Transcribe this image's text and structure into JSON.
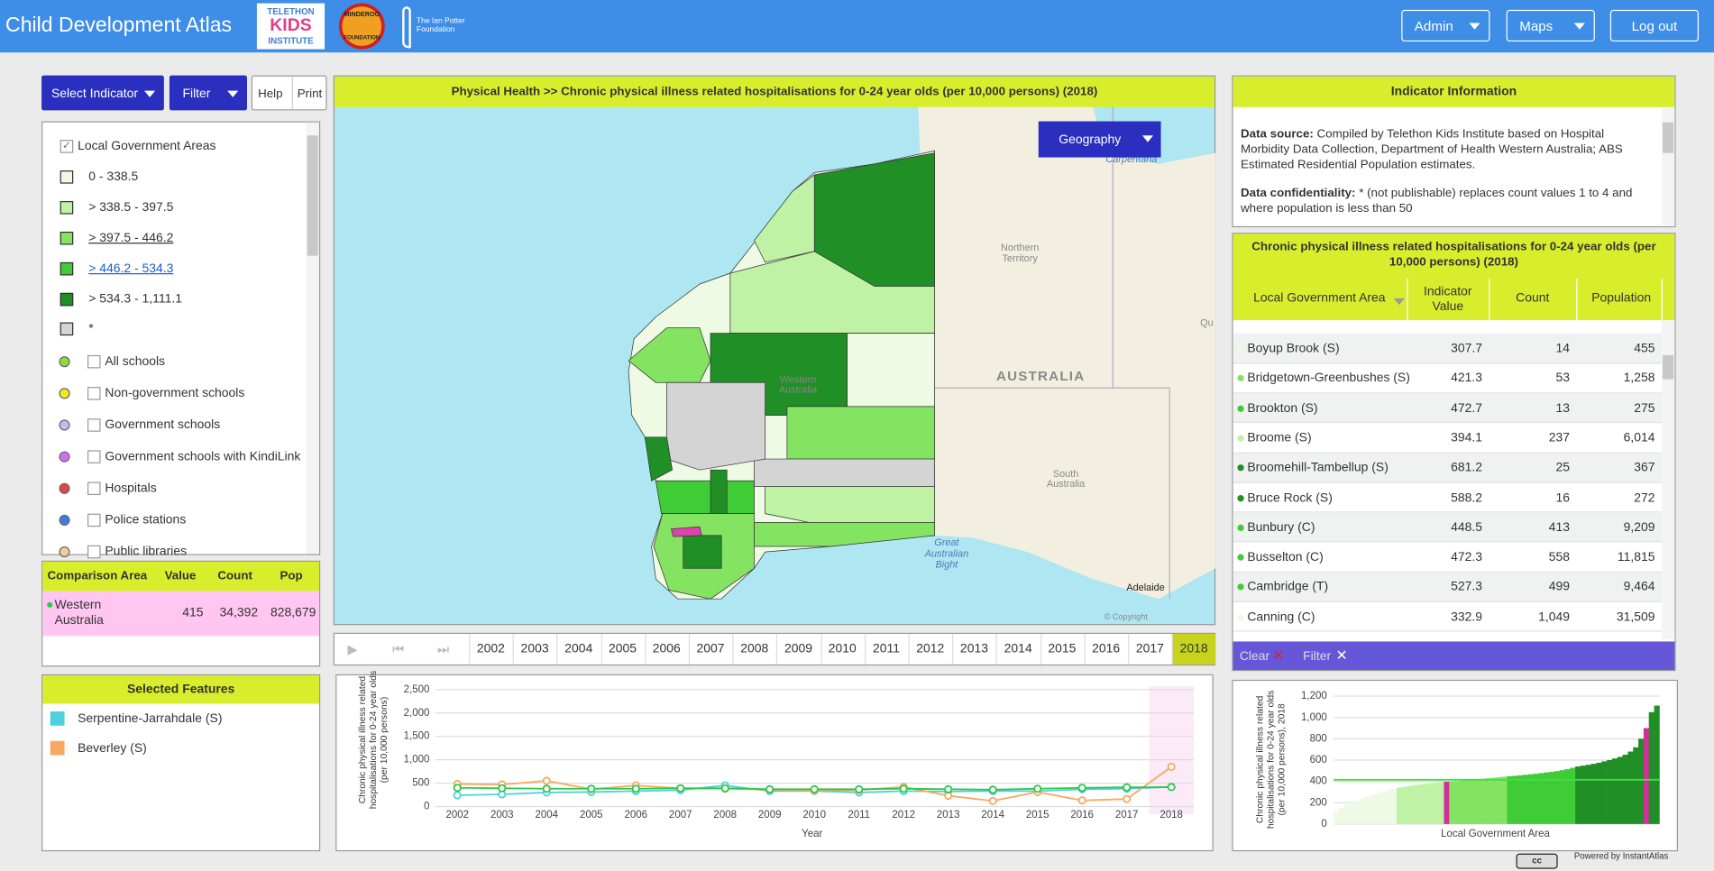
{
  "header": {
    "title": "Child Development Atlas",
    "logos": [
      "TELETHON",
      "KIDS",
      "INSTITUTE",
      "MINDEROO",
      "FOUNDATION",
      "The Ian Potter",
      "Foundation"
    ],
    "nav": [
      "Admin",
      "Maps",
      "Log out"
    ]
  },
  "toolbar": {
    "select_indicator": "Select Indicator",
    "filter": "Filter",
    "help": "Help",
    "print": "Print"
  },
  "legend": {
    "layer": "Local Government Areas",
    "classes": [
      {
        "label": "0 - 338.5",
        "color": "#eefae4",
        "upper": 338.5
      },
      {
        "label": "> 338.5 - 397.5",
        "color": "#bff2a4",
        "upper": 397.5
      },
      {
        "label": "> 397.5 - 446.2",
        "color": "#84e462",
        "upper": 446.2
      },
      {
        "label": "> 446.2 - 534.3",
        "color": "#3fcc36",
        "upper": 534.3
      },
      {
        "label": "> 534.3 - 1,111.1",
        "color": "#1f8f26",
        "upper": 1111.1
      },
      {
        "label": "*",
        "color": "#d4d4d4"
      }
    ],
    "features": [
      {
        "label": "All schools",
        "color": "#8fdc3c"
      },
      {
        "label": "Non-government schools",
        "color": "#f0ec1c"
      },
      {
        "label": "Government schools",
        "color": "#cbb8f0"
      },
      {
        "label": "Government schools with KindiLink",
        "color": "#d070f0"
      },
      {
        "label": "Hospitals",
        "color": "#e04444"
      },
      {
        "label": "Police stations",
        "color": "#3a7ee0"
      },
      {
        "label": "Public libraries",
        "color": "#f0cc98"
      }
    ]
  },
  "comparison": {
    "headers": [
      "Comparison Area",
      "Value",
      "Count",
      "Pop"
    ],
    "rows": [
      [
        "Western Australia",
        "415",
        "34,392",
        "828,679"
      ]
    ]
  },
  "selected_features": {
    "title": "Selected Features"
  },
  "map": {
    "title": "Physical Health >>  Chronic physical illness related hospitalisations for 0-24 year olds (per 10,000 persons) (2018)",
    "geography": "Geography",
    "highlight_color": "#e040b0",
    "labels": [
      "Carpentaria",
      "Northern",
      "Territory",
      "Western",
      "Australia",
      "AUSTRALIA",
      "South",
      "Australia",
      "Great",
      "Australian",
      "Bight",
      "Adelaide",
      "© Copyright",
      "Qu"
    ]
  },
  "timeline": {
    "years": [
      "2002",
      "2003",
      "2004",
      "2005",
      "2006",
      "2007",
      "2008",
      "2009",
      "2010",
      "2011",
      "2012",
      "2013",
      "2014",
      "2015",
      "2016",
      "2017",
      "2018"
    ],
    "selected": 16
  },
  "info": {
    "title": "Indicator Information",
    "paragraphs": [
      {
        "label": "Data source:",
        "text": "Compiled by Telethon Kids Institute based on Hospital Morbidity Data Collection, Department of Health Western Australia; ABS Estimated Residential Population estimates."
      },
      {
        "label": "Data confidentiality:",
        "text": "* (not publishable) replaces count values 1 to 4 and where population is less than 50"
      }
    ]
  },
  "table": {
    "title": "Chronic physical illness related hospitalisations for 0-24 year olds (per 10,000 persons) (2018)",
    "headers": [
      "Local Government Area",
      "Indicator Value",
      "Count",
      "Population"
    ],
    "rows": [
      [
        "Boyup Brook (S)",
        "307.7",
        "14",
        "455"
      ],
      [
        "Bridgetown-Greenbushes (S)",
        "421.3",
        "53",
        "1,258"
      ],
      [
        "Brookton (S)",
        "472.7",
        "13",
        "275"
      ],
      [
        "Broome (S)",
        "394.1",
        "237",
        "6,014"
      ],
      [
        "Broomehill-Tambellup (S)",
        "681.2",
        "25",
        "367"
      ],
      [
        "Bruce Rock (S)",
        "588.2",
        "16",
        "272"
      ],
      [
        "Bunbury (C)",
        "448.5",
        "413",
        "9,209"
      ],
      [
        "Busselton (C)",
        "472.3",
        "558",
        "11,815"
      ],
      [
        "Cambridge (T)",
        "527.3",
        "499",
        "9,464"
      ],
      [
        "Canning (C)",
        "332.9",
        "1,049",
        "31,509"
      ]
    ],
    "clear": "Clear",
    "filter": "Filter"
  },
  "footer": {
    "powered": "Powered by InstantAtlas"
  },
  "chart_data": [
    {
      "type": "line",
      "y_label": "Chronic physical illness related hospitalisations for 0-24 year olds (per 10,000 persons)",
      "x_label": "Year",
      "x": [
        2002,
        2003,
        2004,
        2005,
        2006,
        2007,
        2008,
        2009,
        2010,
        2011,
        2012,
        2013,
        2014,
        2015,
        2016,
        2017,
        2018
      ],
      "xlim": [
        2001.5,
        2018.5
      ],
      "xticks": [
        2002,
        2003,
        2004,
        2005,
        2006,
        2007,
        2008,
        2009,
        2010,
        2011,
        2012,
        2013,
        2014,
        2015,
        2016,
        2017,
        2018
      ],
      "ylim": [
        0,
        2500
      ],
      "yticks": [
        0,
        500,
        {
          "value": 1000,
          "label": "1,000"
        },
        {
          "value": 1500,
          "label": "1,500"
        },
        {
          "value": 2000,
          "label": "2,000"
        },
        {
          "value": 2500,
          "label": "2,500"
        }
      ],
      "grid": true,
      "band_color": "#fdeaf8",
      "series": [
        {
          "name": "Serpentine-Jarrahdale (S)",
          "color": "#4fd0dc",
          "values": [
            240,
            260,
            300,
            310,
            330,
            350,
            450,
            330,
            330,
            300,
            330,
            320,
            330,
            330,
            370,
            380,
            420
          ]
        },
        {
          "name": "Beverley (S)",
          "color": "#f8a860",
          "values": [
            480,
            470,
            550,
            370,
            450,
            390,
            380,
            360,
            340,
            350,
            420,
            230,
            120,
            310,
            130,
            160,
            850
          ]
        },
        {
          "color": "#2ec84a",
          "values": [
            400,
            390,
            380,
            380,
            380,
            390,
            390,
            370,
            370,
            370,
            380,
            370,
            360,
            380,
            400,
            410,
            415
          ]
        }
      ]
    },
    {
      "type": "bar",
      "y_label": "Chronic physical illness related hospitalisations for 0-24 year olds (per 10,000 persons), 2018",
      "x_label": "Local Government Area",
      "ylim": [
        0,
        1200
      ],
      "yticks": [
        0,
        200,
        400,
        600,
        800,
        {
          "value": 1000,
          "label": "1,000"
        },
        {
          "value": 1200,
          "label": "1,200"
        }
      ],
      "grid": true,
      "values": [
        120,
        150,
        180,
        200,
        220,
        240,
        260,
        275,
        290,
        305,
        318,
        330,
        342,
        350,
        358,
        365,
        372,
        378,
        384,
        389,
        393,
        397,
        400,
        404,
        408,
        412,
        416,
        420,
        425,
        430,
        435,
        440,
        445,
        448,
        452,
        457,
        462,
        467,
        472,
        478,
        484,
        490,
        497,
        505,
        515,
        528,
        540,
        548,
        556,
        565,
        575,
        588,
        600,
        615,
        630,
        650,
        680,
        720,
        800,
        900,
        1050,
        1111
      ],
      "reference": 415,
      "reference_color": "#44dd44",
      "highlight": [
        21,
        59
      ],
      "highlight_color": "#d0309a"
    }
  ]
}
